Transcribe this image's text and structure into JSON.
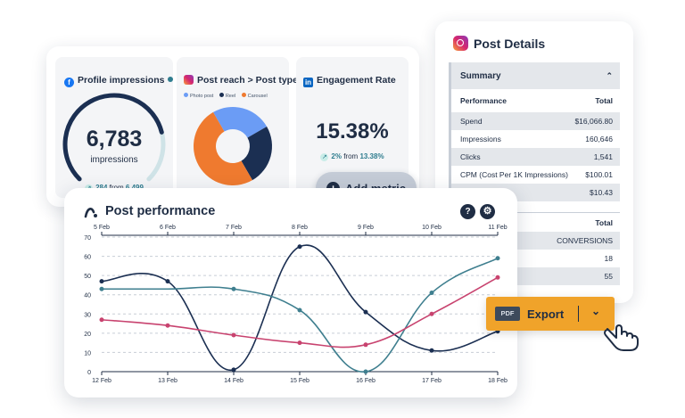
{
  "metrics": {
    "profile_impressions": {
      "title": "Profile impressions",
      "icon": "facebook-icon",
      "value": "6,783",
      "unit": "impressions",
      "change": "284",
      "from_label": "from",
      "previous": "6,499",
      "gauge_fraction": 0.78
    },
    "post_reach": {
      "title": "Post reach > Post type",
      "icon": "instagram-icon",
      "legend": [
        "Photo post",
        "Reel",
        "Carousel"
      ],
      "colors": [
        "#6b9cf5",
        "#1b2f52",
        "#ef7a2f"
      ],
      "slices": [
        25,
        25,
        50
      ]
    },
    "engagement_rate": {
      "title": "Engagement Rate",
      "icon": "linkedin-icon",
      "value": "15.38%",
      "change": "2%",
      "from_label": "from",
      "previous": "13.38%"
    }
  },
  "add_metric": {
    "label": "Add metric"
  },
  "post_details": {
    "title": "Post Details",
    "summary_label": "Summary",
    "header": [
      "Performance",
      "Total"
    ],
    "rows": [
      [
        "Spend",
        "$16,066.80"
      ],
      [
        "Impressions",
        "160,646"
      ],
      [
        "Clicks",
        "1,541"
      ],
      [
        "CPM (Cost Per 1K Impressions)",
        "$100.01"
      ],
      [
        "",
        "$10.43"
      ]
    ],
    "section2_total": "Total",
    "section2_rows": [
      "CONVERSIONS",
      "18",
      "55"
    ]
  },
  "post_performance": {
    "title": "Post performance",
    "help_label": "?",
    "settings_icon": "gear-icon"
  },
  "export": {
    "badge": "PDF",
    "label": "Export",
    "icon": "chevron-down-icon"
  },
  "chart_data": {
    "type": "line",
    "x_bottom": [
      "12 Feb",
      "13 Feb",
      "14 Feb",
      "15 Feb",
      "16 Feb",
      "17 Feb",
      "18 Feb"
    ],
    "x_top": [
      "5 Feb",
      "6 Feb",
      "7 Feb",
      "8 Feb",
      "9 Feb",
      "10 Feb",
      "11 Feb"
    ],
    "ylim": [
      0,
      70
    ],
    "yticks": [
      0,
      10,
      20,
      30,
      40,
      50,
      60,
      70
    ],
    "grid": true,
    "colors": [
      "#1b2f52",
      "#3f7f8f",
      "#c8436f"
    ],
    "series": [
      {
        "values": [
          47,
          47,
          1,
          65,
          31,
          11,
          21
        ]
      },
      {
        "values": [
          43,
          43,
          43,
          32,
          0,
          41,
          59
        ]
      },
      {
        "values": [
          27,
          24,
          19,
          15,
          14,
          30,
          49
        ]
      }
    ]
  }
}
